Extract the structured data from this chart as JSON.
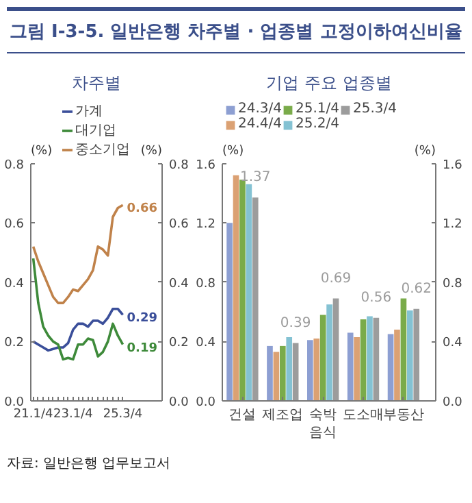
{
  "chart_data": [
    {
      "type": "other",
      "title": "그림 Ⅰ-3-5. 일반은행 차주별 · 업종별 고정이하여신비율",
      "annotations": [
        "자료: 일반은행 업무보고서"
      ]
    },
    {
      "type": "line",
      "title": "차주별",
      "ylabel": "(%)",
      "y2label": "(%)",
      "categories": [
        "21.1/4",
        null,
        null,
        null,
        null,
        null,
        null,
        null,
        "23.1/4",
        null,
        null,
        null,
        null,
        null,
        null,
        null,
        null,
        null,
        "25.3/4"
      ],
      "series": [
        {
          "name": "가계",
          "color": "#3b4f9a",
          "values": [
            0.2,
            0.19,
            0.18,
            0.17,
            0.175,
            0.18,
            0.18,
            0.195,
            0.24,
            0.26,
            0.26,
            0.25,
            0.27,
            0.27,
            0.26,
            0.28,
            0.31,
            0.31,
            0.29
          ],
          "value_labels": [
            null,
            null,
            null,
            null,
            null,
            null,
            null,
            null,
            null,
            null,
            null,
            null,
            null,
            null,
            null,
            null,
            null,
            null,
            "0.29"
          ]
        },
        {
          "name": "대기업",
          "color": "#3e8a3a",
          "values": [
            0.48,
            0.33,
            0.25,
            0.22,
            0.2,
            0.19,
            0.14,
            0.145,
            0.14,
            0.19,
            0.19,
            0.21,
            0.205,
            0.15,
            0.165,
            0.2,
            0.26,
            0.22,
            0.19
          ],
          "value_labels": [
            null,
            null,
            null,
            null,
            null,
            null,
            null,
            null,
            null,
            null,
            null,
            null,
            null,
            null,
            null,
            null,
            null,
            null,
            "0.19"
          ]
        },
        {
          "name": "중소기업",
          "color": "#c0824a",
          "values": [
            0.52,
            0.47,
            0.43,
            0.39,
            0.35,
            0.33,
            0.33,
            0.35,
            0.375,
            0.37,
            0.39,
            0.41,
            0.44,
            0.52,
            0.51,
            0.49,
            0.62,
            0.65,
            0.66
          ],
          "value_labels": [
            null,
            null,
            null,
            null,
            null,
            null,
            null,
            null,
            null,
            null,
            null,
            null,
            null,
            null,
            null,
            null,
            null,
            null,
            "0.66"
          ]
        }
      ],
      "ylim": [
        0,
        0.8
      ],
      "yticks": [
        {
          "value": 0,
          "label": "0.0"
        },
        0.2,
        0.4,
        0.6,
        0.8
      ],
      "y2lim": [
        0,
        0.8
      ],
      "y2ticks": [
        {
          "value": 0,
          "label": "0.0"
        },
        0.2,
        0.4,
        0.6,
        0.8
      ],
      "grid": false,
      "legend": "top",
      "line_style": "solid",
      "marker": "none"
    },
    {
      "type": "bar",
      "title": "기업 주요 업종별",
      "ylabel": "(%)",
      "y2label": "(%)",
      "categories": [
        "건설",
        "제조업",
        "숙박\n음식",
        "도소매",
        "부동산"
      ],
      "series": [
        {
          "name": "24.3/4",
          "color": "#8d9fd2",
          "values": [
            1.2,
            0.37,
            0.41,
            0.46,
            0.45
          ]
        },
        {
          "name": "24.4/4",
          "color": "#dba173",
          "values": [
            1.52,
            0.33,
            0.42,
            0.43,
            0.48
          ]
        },
        {
          "name": "25.1/4",
          "color": "#7aab4a",
          "values": [
            1.49,
            0.37,
            0.58,
            0.55,
            0.69
          ]
        },
        {
          "name": "25.2/4",
          "color": "#84c2d3",
          "values": [
            1.46,
            0.43,
            0.65,
            0.57,
            0.61
          ]
        },
        {
          "name": "25.3/4",
          "color": "#9c9c9c",
          "values": [
            1.37,
            0.39,
            0.69,
            0.56,
            0.62
          ],
          "value_labels": [
            "1.37",
            "0.39",
            "0.69",
            "0.56",
            "0.62"
          ]
        }
      ],
      "ylim": [
        0,
        1.6
      ],
      "yticks": [
        {
          "value": 0,
          "label": "0.0"
        },
        0.4,
        0.8,
        1.2,
        1.6
      ],
      "y2lim": [
        0,
        1.6
      ],
      "y2ticks": [
        {
          "value": 0,
          "label": "0.0"
        },
        0.4,
        0.8,
        1.2,
        1.6
      ],
      "grid": false,
      "legend": "top"
    }
  ]
}
